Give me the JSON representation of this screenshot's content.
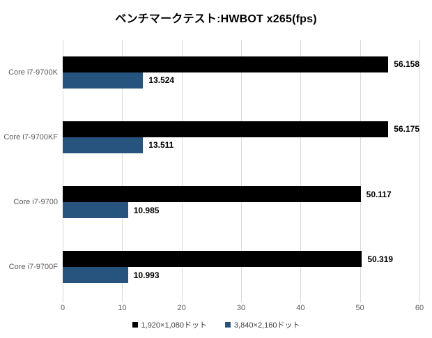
{
  "title": "ベンチマークテスト:HWBOT x265(fps)",
  "chart_data": {
    "type": "bar",
    "orientation": "horizontal",
    "title": "ベンチマークテスト:HWBOT x265(fps)",
    "categories": [
      "Core i7-9700K",
      "Core i7-9700KF",
      "Core i7-9700",
      "Core i7-9700F"
    ],
    "series": [
      {
        "name": "1,920×1,080ドット",
        "color": "#000000",
        "values": [
          56.158,
          56.175,
          50.117,
          50.319
        ],
        "value_labels": [
          "56.158",
          "56.175",
          "50.117",
          "50.319"
        ]
      },
      {
        "name": "3,840×2,160ドット",
        "color": "#27537F",
        "values": [
          13.524,
          13.511,
          10.985,
          10.993
        ],
        "value_labels": [
          "13.524",
          "13.511",
          "10.985",
          "10.993"
        ]
      }
    ],
    "xlabel": "",
    "ylabel": "",
    "xlim": [
      0,
      60
    ],
    "xticks": [
      0,
      10,
      20,
      30,
      40,
      50,
      60
    ],
    "grid": true,
    "gridline_color": "#d9d9d9",
    "legend_position": "bottom"
  }
}
